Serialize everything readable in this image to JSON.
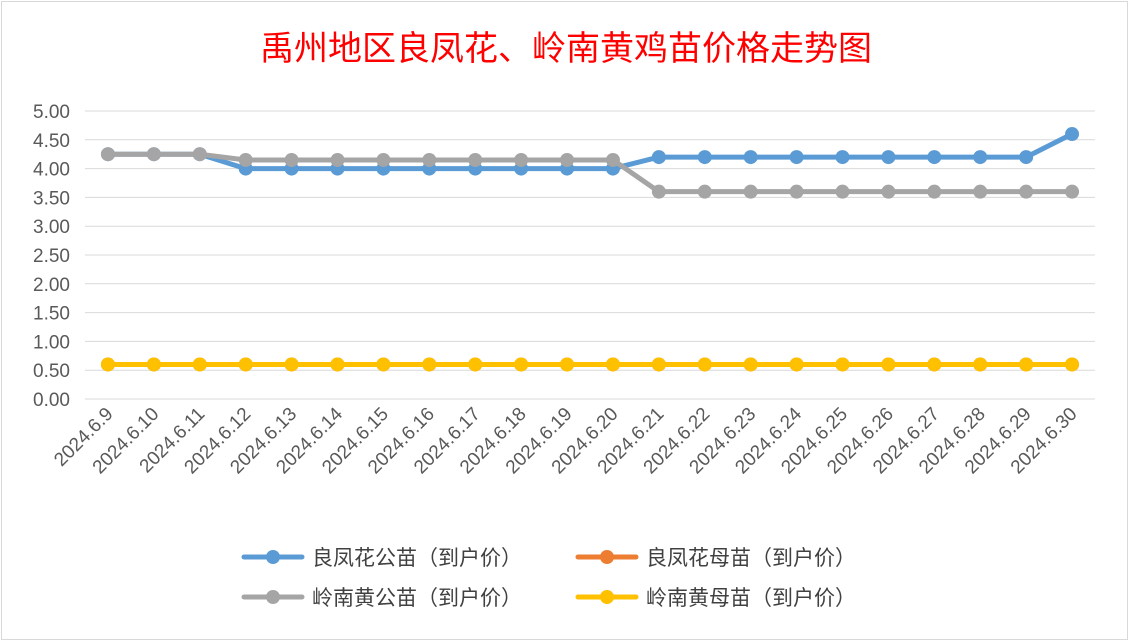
{
  "chart_data": {
    "type": "line",
    "title": "禹州地区良凤花、岭南黄鸡苗价格走势图",
    "xlabel": "",
    "ylabel": "",
    "ylim": [
      0,
      5
    ],
    "y_ticks": [
      "0.00",
      "0.50",
      "1.00",
      "1.50",
      "2.00",
      "2.50",
      "3.00",
      "3.50",
      "4.00",
      "4.50",
      "5.00"
    ],
    "grid": true,
    "legend_position": "bottom",
    "categories": [
      "2024.6.9",
      "2024.6.10",
      "2024.6.11",
      "2024.6.12",
      "2024.6.13",
      "2024.6.14",
      "2024.6.15",
      "2024.6.16",
      "2024.6.17",
      "2024.6.18",
      "2024.6.19",
      "2024.6.20",
      "2024.6.21",
      "2024.6.22",
      "2024.6.23",
      "2024.6.24",
      "2024.6.25",
      "2024.6.26",
      "2024.6.27",
      "2024.6.28",
      "2024.6.29",
      "2024.6.30"
    ],
    "series": [
      {
        "name": "良凤花公苗（到户价）",
        "color": "#5B9BD5",
        "values": [
          4.25,
          4.25,
          4.25,
          4.0,
          4.0,
          4.0,
          4.0,
          4.0,
          4.0,
          4.0,
          4.0,
          4.0,
          4.2,
          4.2,
          4.2,
          4.2,
          4.2,
          4.2,
          4.2,
          4.2,
          4.2,
          4.6
        ]
      },
      {
        "name": "良凤花母苗（到户价）",
        "color": "#ED7D31",
        "values": [
          0.6,
          0.6,
          0.6,
          0.6,
          0.6,
          0.6,
          0.6,
          0.6,
          0.6,
          0.6,
          0.6,
          0.6,
          0.6,
          0.6,
          0.6,
          0.6,
          0.6,
          0.6,
          0.6,
          0.6,
          0.6,
          0.6
        ]
      },
      {
        "name": "岭南黄公苗（到户价）",
        "color": "#A5A5A5",
        "values": [
          4.25,
          4.25,
          4.25,
          4.15,
          4.15,
          4.15,
          4.15,
          4.15,
          4.15,
          4.15,
          4.15,
          4.15,
          3.6,
          3.6,
          3.6,
          3.6,
          3.6,
          3.6,
          3.6,
          3.6,
          3.6,
          3.6
        ]
      },
      {
        "name": "岭南黄母苗（到户价）",
        "color": "#FFC000",
        "values": [
          0.6,
          0.6,
          0.6,
          0.6,
          0.6,
          0.6,
          0.6,
          0.6,
          0.6,
          0.6,
          0.6,
          0.6,
          0.6,
          0.6,
          0.6,
          0.6,
          0.6,
          0.6,
          0.6,
          0.6,
          0.6,
          0.6
        ]
      }
    ],
    "legend_order": [
      0,
      1,
      2,
      3
    ],
    "colors": {
      "title": "#FF0000",
      "grid": "#D9D9D9",
      "tick_text": "#595959"
    }
  }
}
